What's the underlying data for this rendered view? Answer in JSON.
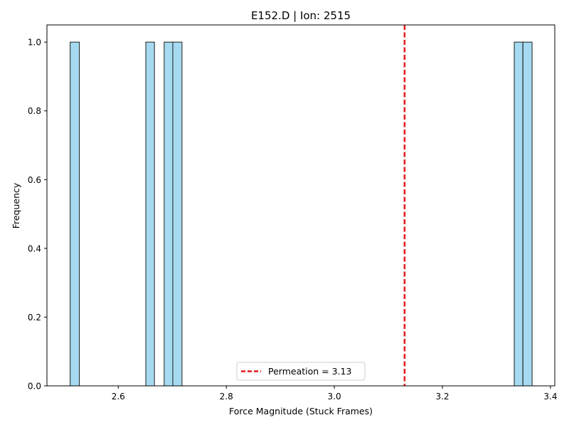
{
  "chart_data": {
    "type": "bar",
    "title": "E152.D | Ion: 2515",
    "xlabel": "Force Magnitude (Stuck Frames)",
    "ylabel": "Frequency",
    "xlim": [
      2.468,
      3.408
    ],
    "ylim": [
      0.0,
      1.05
    ],
    "xticks": [
      "2.6",
      "2.8",
      "3.0",
      "3.2",
      "3.4"
    ],
    "xtick_values": [
      2.6,
      2.8,
      3.0,
      3.2,
      3.4
    ],
    "yticks": [
      "0.0",
      "0.2",
      "0.4",
      "0.6",
      "0.8",
      "1.0"
    ],
    "ytick_values": [
      0.0,
      0.2,
      0.4,
      0.6,
      0.8,
      1.0
    ],
    "grid": false,
    "bins": [
      {
        "x0": 2.511,
        "x1": 2.528,
        "count": 1
      },
      {
        "x0": 2.651,
        "x1": 2.667,
        "count": 1
      },
      {
        "x0": 2.685,
        "x1": 2.701,
        "count": 1
      },
      {
        "x0": 2.701,
        "x1": 2.718,
        "count": 1
      },
      {
        "x0": 3.333,
        "x1": 3.349,
        "count": 1
      },
      {
        "x0": 3.349,
        "x1": 3.366,
        "count": 1
      }
    ],
    "bar_color": "#87CEEB",
    "bar_edge_color": "#1f1f1f",
    "reference_line": {
      "x": 3.13,
      "color": "#e31a1c",
      "style": "dashed"
    },
    "legend": {
      "placement": "bottom-center",
      "entries": [
        "Permeation = 3.13"
      ]
    }
  }
}
